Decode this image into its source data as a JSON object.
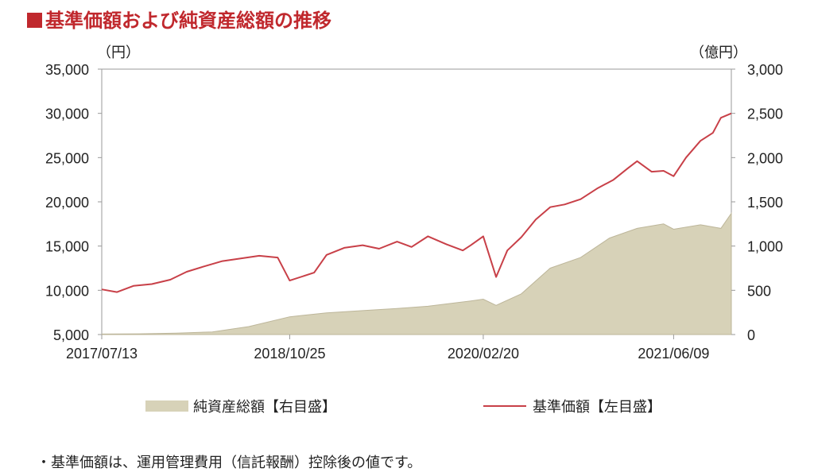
{
  "title": "基準価額および純資産総額の推移",
  "unit_left": "（円）",
  "unit_right": "（億円）",
  "footnote": "・基準価額は、運用管理費用（信託報酬）控除後の値です。",
  "legend": {
    "area_label": "純資産総額【右目盛】",
    "line_label": "基準価額【左目盛】"
  },
  "colors": {
    "title": "#c0282d",
    "line": "#c84048",
    "area_fill": "#d7d2b8",
    "area_stroke": "#bdb69a"
  },
  "chart_data": {
    "type": "line",
    "x_range": [
      "2017-07-13",
      "2021-10-31"
    ],
    "x_ticks": [
      "2017/07/13",
      "2018/10/25",
      "2020/02/20",
      "2021/06/09"
    ],
    "y_left": {
      "label": "（円）",
      "min": 5000,
      "max": 35000,
      "ticks": [
        "5,000",
        "10,000",
        "15,000",
        "20,000",
        "25,000",
        "30,000",
        "35,000"
      ]
    },
    "y_right": {
      "label": "（億円）",
      "min": 0,
      "max": 3000,
      "ticks": [
        "0",
        "500",
        "1,000",
        "1,500",
        "2,000",
        "2,500",
        "3,000"
      ]
    },
    "series": [
      {
        "name": "基準価額【左目盛】",
        "type": "line",
        "axis": "left",
        "x": [
          "2017-07-13",
          "2017-08-20",
          "2017-09-30",
          "2017-11-15",
          "2017-12-31",
          "2018-02-10",
          "2018-03-25",
          "2018-05-10",
          "2018-06-25",
          "2018-08-10",
          "2018-09-25",
          "2018-10-25",
          "2018-12-25",
          "2019-01-25",
          "2019-03-10",
          "2019-04-25",
          "2019-06-05",
          "2019-07-20",
          "2019-08-25",
          "2019-10-05",
          "2019-11-20",
          "2019-12-31",
          "2020-01-20",
          "2020-02-20",
          "2020-03-23",
          "2020-04-20",
          "2020-05-25",
          "2020-06-30",
          "2020-08-05",
          "2020-09-10",
          "2020-10-20",
          "2020-11-30",
          "2021-01-10",
          "2021-02-15",
          "2021-03-10",
          "2021-04-15",
          "2021-05-15",
          "2021-06-09",
          "2021-07-10",
          "2021-08-15",
          "2021-09-15",
          "2021-10-05",
          "2021-10-31"
        ],
        "y": [
          10100,
          9800,
          10500,
          10700,
          11200,
          12100,
          12700,
          13300,
          13600,
          13900,
          13700,
          11100,
          12000,
          14000,
          14800,
          15100,
          14700,
          15500,
          14900,
          16100,
          15200,
          14500,
          15100,
          16100,
          11500,
          14500,
          16000,
          18000,
          19400,
          19700,
          20300,
          21500,
          22500,
          23800,
          24600,
          23400,
          23500,
          22900,
          25000,
          26900,
          27800,
          29500,
          30000
        ]
      },
      {
        "name": "純資産総額【右目盛】",
        "type": "area",
        "axis": "right",
        "x": [
          "2017-07-13",
          "2017-10-15",
          "2018-01-15",
          "2018-04-15",
          "2018-07-15",
          "2018-10-25",
          "2019-01-25",
          "2019-04-25",
          "2019-07-20",
          "2019-10-05",
          "2020-01-20",
          "2020-02-20",
          "2020-03-23",
          "2020-05-25",
          "2020-08-05",
          "2020-10-20",
          "2020-12-31",
          "2021-03-10",
          "2021-05-15",
          "2021-06-09",
          "2021-08-15",
          "2021-10-05",
          "2021-10-31"
        ],
        "y": [
          5,
          8,
          15,
          30,
          90,
          200,
          245,
          270,
          295,
          320,
          380,
          400,
          330,
          460,
          750,
          870,
          1090,
          1200,
          1250,
          1190,
          1240,
          1200,
          1370
        ]
      }
    ]
  }
}
